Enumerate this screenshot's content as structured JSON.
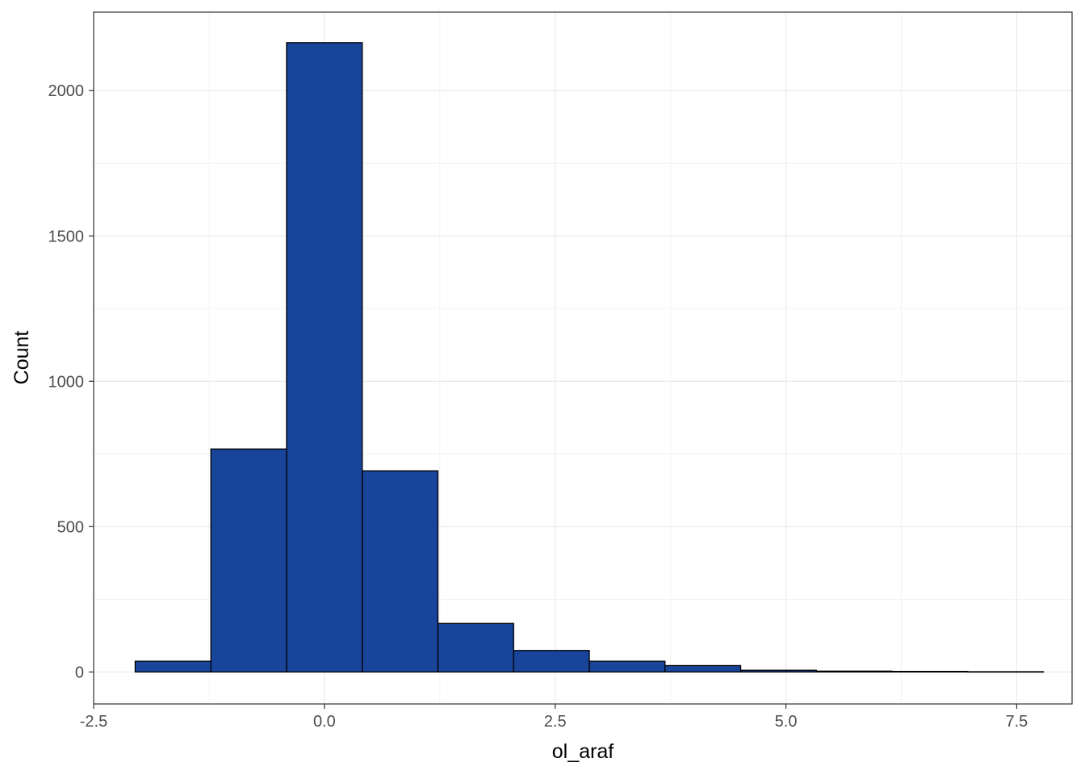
{
  "chart_data": {
    "type": "bar",
    "subtype": "histogram",
    "xlabel": "ol_araf",
    "ylabel": "Count",
    "xlim": [
      -2.5,
      8.1
    ],
    "ylim": [
      -110,
      2270
    ],
    "x_ticks": [
      -2.5,
      0.0,
      2.5,
      5.0,
      7.5
    ],
    "x_tick_labels": [
      "-2.5",
      "0.0",
      "2.5",
      "5.0",
      "7.5"
    ],
    "y_ticks": [
      0,
      500,
      1000,
      1500,
      2000
    ],
    "y_tick_labels": [
      "0",
      "500",
      "1000",
      "1500",
      "2000"
    ],
    "grid": true,
    "fill_color": "#18449A",
    "edge_color": "#000000",
    "bins": [
      {
        "x0": -2.05,
        "x1": -1.23,
        "count": 37
      },
      {
        "x0": -1.23,
        "x1": -0.41,
        "count": 767
      },
      {
        "x0": -0.41,
        "x1": 0.41,
        "count": 2165
      },
      {
        "x0": 0.41,
        "x1": 1.23,
        "count": 692
      },
      {
        "x0": 1.23,
        "x1": 2.05,
        "count": 167
      },
      {
        "x0": 2.05,
        "x1": 2.87,
        "count": 74
      },
      {
        "x0": 2.87,
        "x1": 3.69,
        "count": 37
      },
      {
        "x0": 3.69,
        "x1": 4.51,
        "count": 22
      },
      {
        "x0": 4.51,
        "x1": 5.33,
        "count": 6
      },
      {
        "x0": 5.33,
        "x1": 6.15,
        "count": 3
      },
      {
        "x0": 6.15,
        "x1": 6.97,
        "count": 2
      },
      {
        "x0": 6.97,
        "x1": 7.79,
        "count": 1
      }
    ]
  }
}
